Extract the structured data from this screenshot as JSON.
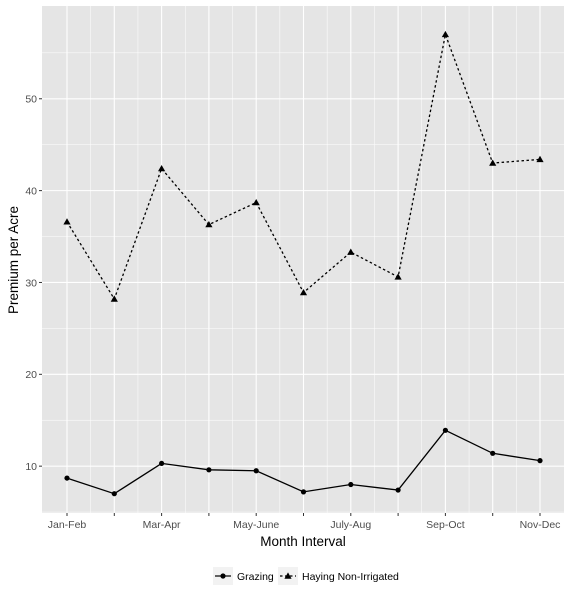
{
  "chart_data": {
    "type": "line",
    "xlabel": "Month Interval",
    "ylabel": "Premium per Acre",
    "x_tick_labels": [
      "Jan-Feb",
      "",
      "Mar-Apr",
      "",
      "May-June",
      "",
      "July-Aug",
      "",
      "Sep-Oct",
      "",
      "Nov-Dec"
    ],
    "y_ticks": [
      10,
      20,
      30,
      40,
      50
    ],
    "ylim": [
      4.9,
      60.1
    ],
    "grid": true,
    "legend_position": "bottom",
    "series": [
      {
        "name": "Grazing",
        "marker": "circle",
        "linestyle": "solid",
        "color": "#000000",
        "values": [
          8.7,
          7.0,
          10.3,
          9.6,
          9.5,
          7.2,
          8.0,
          7.4,
          13.9,
          11.4,
          10.6
        ]
      },
      {
        "name": "Haying Non-Irrigated",
        "marker": "triangle",
        "linestyle": "dashed",
        "color": "#000000",
        "values": [
          36.6,
          28.2,
          42.4,
          36.3,
          38.7,
          28.9,
          33.3,
          30.6,
          57.0,
          43.0,
          43.4
        ]
      }
    ]
  },
  "colors": {
    "panel_background": "#e5e5e5",
    "grid_major": "#ffffff",
    "tick_label": "#4d4d4d"
  }
}
